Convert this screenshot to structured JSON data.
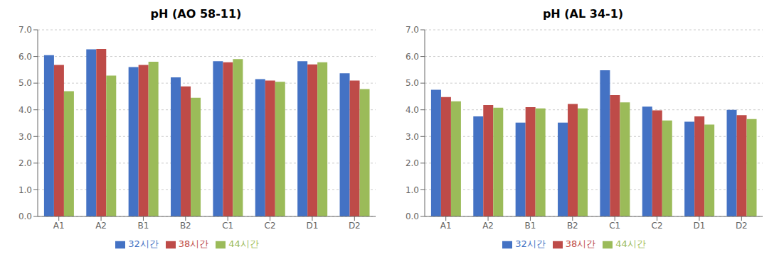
{
  "chart_data": [
    {
      "type": "bar",
      "title": "pH (AO 58-11)",
      "categories": [
        "A1",
        "A2",
        "B1",
        "B2",
        "C1",
        "C2",
        "D1",
        "D2"
      ],
      "series": [
        {
          "name": "32시간",
          "color": "#4472C4",
          "values": [
            6.05,
            6.27,
            5.6,
            5.22,
            5.82,
            5.15,
            5.82,
            5.37
          ]
        },
        {
          "name": "38시간",
          "color": "#BE4B48",
          "values": [
            5.68,
            6.28,
            5.68,
            4.88,
            5.78,
            5.1,
            5.7,
            5.1
          ]
        },
        {
          "name": "44시간",
          "color": "#9BBB59",
          "values": [
            4.7,
            5.28,
            5.8,
            4.45,
            5.9,
            5.05,
            5.78,
            4.78
          ]
        }
      ],
      "ylim": [
        0.0,
        7.0
      ],
      "yticks": [
        {
          "value": 0,
          "label": "0.0"
        },
        {
          "value": 1,
          "label": "1.0"
        },
        {
          "value": 2,
          "label": "2.0"
        },
        {
          "value": 3,
          "label": "3.0"
        },
        {
          "value": 4,
          "label": "4.0"
        },
        {
          "value": 5,
          "label": "5.0"
        },
        {
          "value": 6,
          "label": "6.0"
        },
        {
          "value": 7,
          "label": "7.0"
        }
      ],
      "grid": true,
      "legend": "bottom"
    },
    {
      "type": "bar",
      "title": "pH (AL 34-1)",
      "categories": [
        "A1",
        "A2",
        "B1",
        "B2",
        "C1",
        "C2",
        "D1",
        "D2"
      ],
      "series": [
        {
          "name": "32시간",
          "color": "#4472C4",
          "values": [
            4.75,
            3.75,
            3.52,
            3.52,
            5.48,
            4.12,
            3.55,
            4.0
          ]
        },
        {
          "name": "38시간",
          "color": "#BE4B48",
          "values": [
            4.48,
            4.18,
            4.1,
            4.22,
            4.55,
            3.98,
            3.75,
            3.8
          ]
        },
        {
          "name": "44시간",
          "color": "#9BBB59",
          "values": [
            4.32,
            4.08,
            4.05,
            4.05,
            4.28,
            3.6,
            3.45,
            3.65
          ]
        }
      ],
      "ylim": [
        0.0,
        7.0
      ],
      "yticks": [
        {
          "value": 0,
          "label": "0.0"
        },
        {
          "value": 1,
          "label": "1.0"
        },
        {
          "value": 2,
          "label": "2.0"
        },
        {
          "value": 3,
          "label": "3.0"
        },
        {
          "value": 4,
          "label": "4.0"
        },
        {
          "value": 5,
          "label": "5.0"
        },
        {
          "value": 6,
          "label": "6.0"
        },
        {
          "value": 7,
          "label": "7.0"
        }
      ],
      "grid": true,
      "legend": "bottom"
    }
  ]
}
